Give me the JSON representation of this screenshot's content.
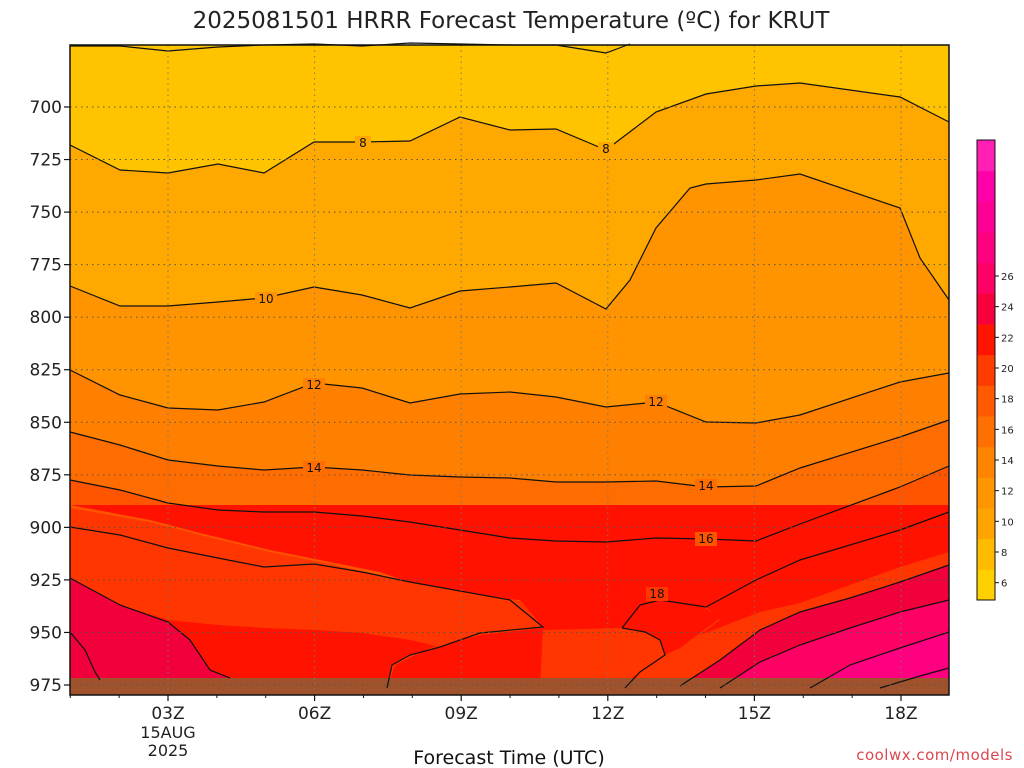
{
  "chart_data": {
    "type": "contour",
    "title": "2025081501 HRRR Forecast Temperature (ºC) for KRUT",
    "xlabel": "Forecast Time (UTC)",
    "x_ticks": [
      "03Z",
      "06Z",
      "09Z",
      "12Z",
      "15Z",
      "18Z"
    ],
    "date_label": [
      "15AUG",
      "2025"
    ],
    "y_ticks": [
      700,
      725,
      750,
      775,
      800,
      825,
      850,
      875,
      900,
      925,
      950,
      975
    ],
    "y_axis": "pressure (hPa), inverted",
    "contour_levels": [
      8,
      10,
      12,
      14,
      16,
      18
    ],
    "contour_labels": [
      {
        "value": "8",
        "near_time": "07Z",
        "near_pressure": 718
      },
      {
        "value": "8",
        "near_time": "12Z",
        "near_pressure": 720
      },
      {
        "value": "10",
        "near_time": "05Z",
        "near_pressure": 789
      },
      {
        "value": "12",
        "near_time": "06Z",
        "near_pressure": 820
      },
      {
        "value": "12",
        "near_time": "13Z",
        "near_pressure": 829
      },
      {
        "value": "14",
        "near_time": "06Z",
        "near_pressure": 860
      },
      {
        "value": "14",
        "near_time": "14Z",
        "near_pressure": 871
      },
      {
        "value": "16",
        "near_time": "14Z",
        "near_pressure": 897
      },
      {
        "value": "18",
        "near_time": "13Z",
        "near_pressure": 925
      }
    ],
    "colorbar": {
      "ticks": [
        "6",
        "8",
        "10",
        "12",
        "14",
        "16",
        "18",
        "20",
        "22",
        "24",
        "26"
      ],
      "colors": [
        "#ffd000",
        "#ffbb00",
        "#ffa400",
        "#ff9600",
        "#ff8400",
        "#ff7000",
        "#ff5a00",
        "#ff3c00",
        "#ff1400",
        "#f8003c",
        "#ff0064",
        "#ff0080",
        "#ff0096",
        "#ff00a8",
        "#ff1fb4"
      ]
    },
    "grid": true
  },
  "footer": {
    "credit": "coolwx.com/models"
  }
}
